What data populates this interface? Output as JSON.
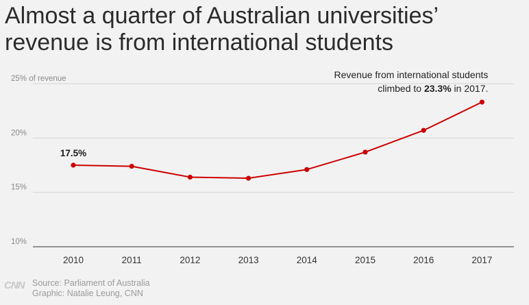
{
  "title_lines": [
    "Almost a quarter of Australian universities’",
    "revenue is from international students"
  ],
  "chart_data": {
    "type": "line",
    "x": [
      "2010",
      "2011",
      "2012",
      "2013",
      "2014",
      "2015",
      "2016",
      "2017"
    ],
    "series": [
      {
        "values": [
          17.5,
          17.4,
          16.4,
          16.3,
          17.1,
          18.7,
          20.7,
          23.3
        ]
      }
    ],
    "y_ticks": [
      {
        "value": 25,
        "label": "25% of revenue"
      },
      {
        "value": 20,
        "label": "20%"
      },
      {
        "value": 15,
        "label": "15%"
      },
      {
        "value": 10,
        "label": "10%"
      }
    ],
    "ylim": [
      10,
      25
    ],
    "grid": true,
    "annotations": {
      "start_label": "17.5%",
      "end_note_line1": "Revenue from international students",
      "end_note_pre": "climbed to ",
      "end_note_bold": "23.3%",
      "end_note_post": " in 2017."
    },
    "colors": {
      "line": "#cc0000",
      "grid": "#d4d4d4",
      "axis": "#333333"
    }
  },
  "footer": {
    "logo": "CNN",
    "source": "Source: Parliament of Australia",
    "graphic": "Graphic: Natalie Leung, CNN"
  }
}
